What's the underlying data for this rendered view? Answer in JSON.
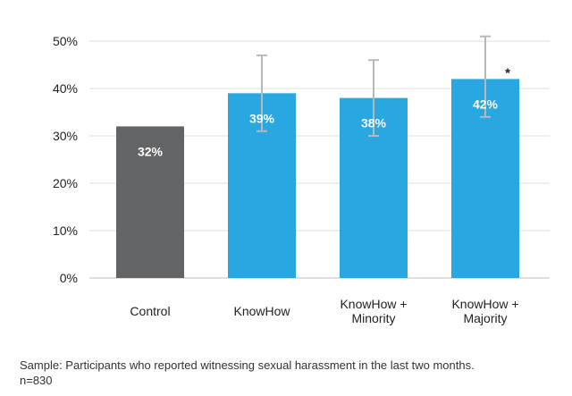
{
  "chart_data": {
    "type": "bar",
    "categories": [
      [
        "Control"
      ],
      [
        "KnowHow"
      ],
      [
        "KnowHow +",
        "Minority"
      ],
      [
        "KnowHow +",
        "Majority"
      ]
    ],
    "values": [
      32,
      39,
      38,
      42
    ],
    "value_labels": [
      "32%",
      "39%",
      "38%",
      "42%"
    ],
    "error_bars": [
      null,
      [
        31,
        47
      ],
      [
        30,
        46
      ],
      [
        34,
        51
      ]
    ],
    "significance_marks": [
      "",
      "",
      "",
      "*"
    ],
    "bar_colors": [
      "#636466",
      "#29a7e1",
      "#29a7e1",
      "#29a7e1"
    ],
    "errorbar_color": "#b8b8b8",
    "ylim": [
      0,
      50
    ],
    "yticks": [
      0,
      10,
      20,
      30,
      40,
      50
    ],
    "ytick_labels": [
      "0%",
      "10%",
      "20%",
      "30%",
      "40%",
      "50%"
    ],
    "grid": true,
    "title": "",
    "xlabel": "",
    "ylabel": ""
  },
  "caption": {
    "line1": "Sample: Participants who reported witnessing sexual harassment in the last two months.",
    "line2": "n=830"
  }
}
